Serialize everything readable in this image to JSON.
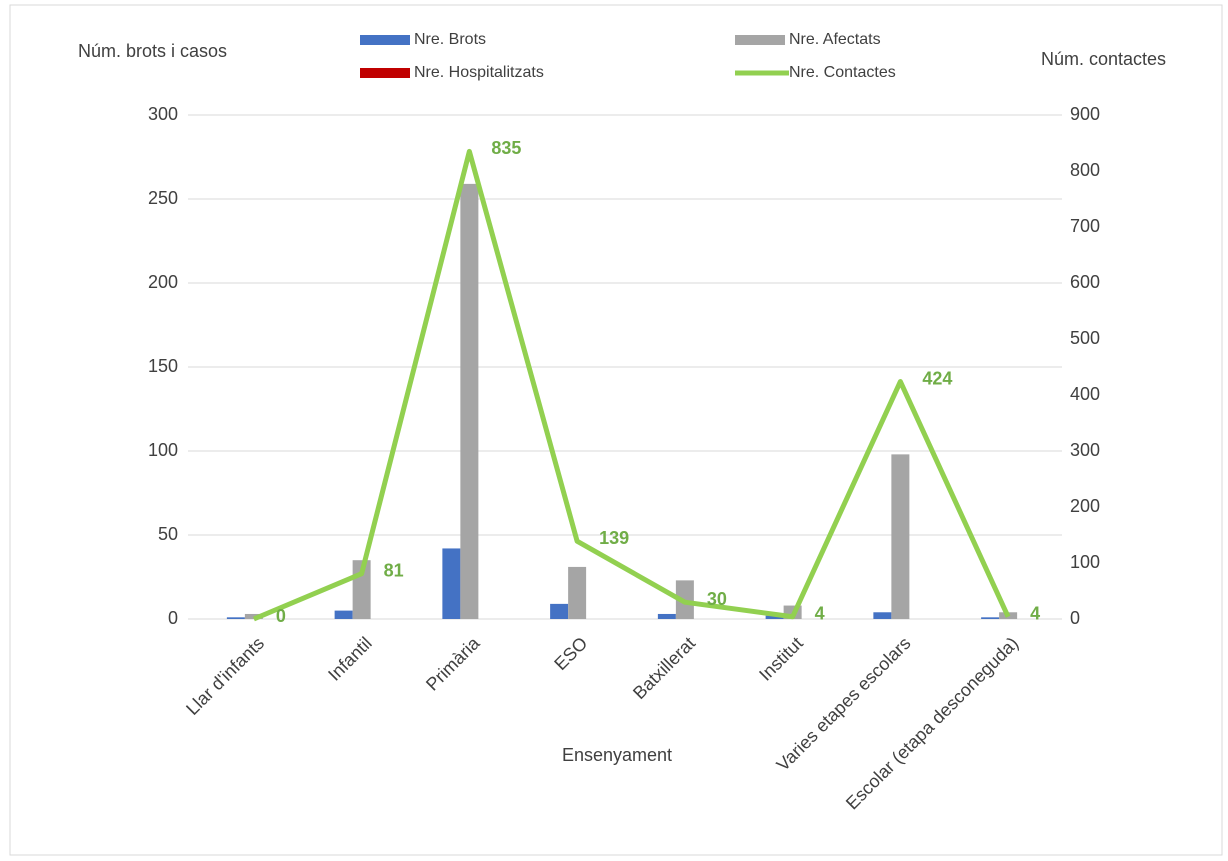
{
  "chart_data": {
    "type": "bar",
    "y_label": "Núm. brots i casos",
    "y2_label": "Núm. contactes",
    "x_label": "Ensenyament",
    "categories": [
      "Llar d'infants",
      "Infantil",
      "Primària",
      "ESO",
      "Batxillerat",
      "Institut",
      "Varies etapes escolars",
      "Escolar (etapa desconeguda)"
    ],
    "series": [
      {
        "name": "Nre. Brots",
        "color": "#4472c4",
        "values": [
          1,
          5,
          42,
          9,
          3,
          2,
          4,
          1
        ]
      },
      {
        "name": "Nre. Afectats",
        "color": "#a5a5a5",
        "values": [
          3,
          35,
          259,
          31,
          23,
          8,
          98,
          4
        ]
      },
      {
        "name": "Nre. Hospitalitzats",
        "color": "#c00000",
        "values": [
          0,
          0,
          0,
          0,
          0,
          0,
          0,
          0
        ]
      },
      {
        "name": "Nre.  Contactes",
        "color": "#92d050",
        "type": "line",
        "axis": "y2",
        "values": [
          0,
          81,
          835,
          139,
          30,
          4,
          424,
          4
        ]
      }
    ],
    "ylim": [
      0,
      300
    ],
    "yticks": [
      0,
      50,
      100,
      150,
      200,
      250,
      300
    ],
    "y2lim": [
      0,
      900
    ],
    "y2ticks": [
      0,
      100,
      200,
      300,
      400,
      500,
      600,
      700,
      800,
      900
    ],
    "grid": true
  }
}
